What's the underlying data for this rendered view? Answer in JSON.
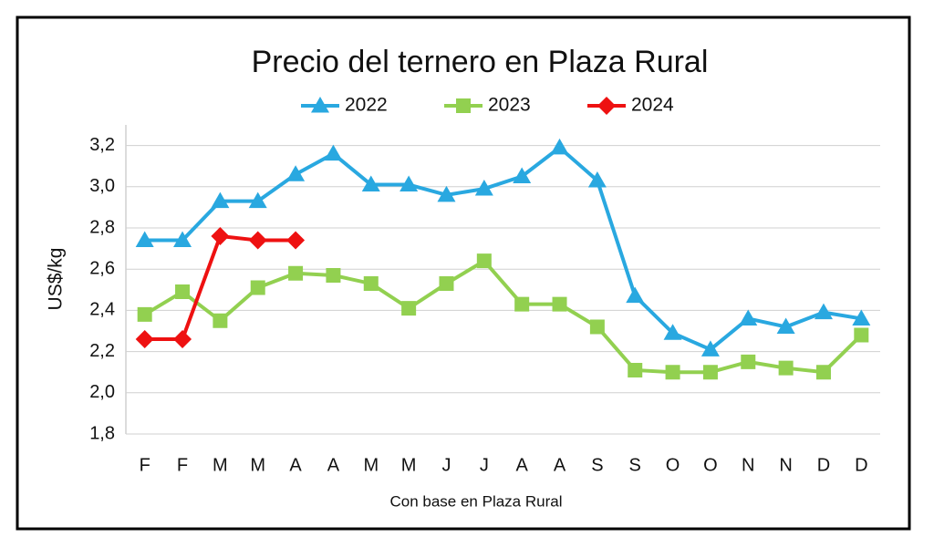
{
  "chart_data": {
    "type": "line",
    "title": "Precio del ternero en Plaza Rural",
    "y_label": "US$/kg",
    "x_label": "Con base en Plaza Rural",
    "categories": [
      "F",
      "F",
      "M",
      "M",
      "A",
      "A",
      "M",
      "M",
      "J",
      "J",
      "A",
      "A",
      "S",
      "S",
      "O",
      "O",
      "N",
      "N",
      "D",
      "D"
    ],
    "series": [
      {
        "name": "2022",
        "color": "#29a8e0",
        "marker": "triangle",
        "values": [
          2.74,
          2.74,
          2.93,
          2.93,
          3.06,
          3.16,
          3.01,
          3.01,
          2.96,
          2.99,
          3.05,
          3.19,
          3.03,
          2.47,
          2.29,
          2.21,
          2.36,
          2.32,
          2.39,
          2.36
        ]
      },
      {
        "name": "2023",
        "color": "#92d050",
        "marker": "square",
        "values": [
          2.38,
          2.49,
          2.35,
          2.51,
          2.58,
          2.57,
          2.53,
          2.41,
          2.53,
          2.64,
          2.43,
          2.43,
          2.32,
          2.11,
          2.1,
          2.1,
          2.15,
          2.12,
          2.1,
          2.28
        ]
      },
      {
        "name": "2024",
        "color": "#ee1111",
        "marker": "diamond",
        "values": [
          2.26,
          2.26,
          2.76,
          2.74,
          2.74,
          null,
          null,
          null,
          null,
          null,
          null,
          null,
          null,
          null,
          null,
          null,
          null,
          null,
          null,
          null
        ]
      }
    ],
    "ylim": [
      1.8,
      3.3
    ],
    "yticks": [
      {
        "value": 1.8,
        "label": "1,8"
      },
      {
        "value": 2.0,
        "label": "2,0"
      },
      {
        "value": 2.2,
        "label": "2,2"
      },
      {
        "value": 2.4,
        "label": "2,4"
      },
      {
        "value": 2.6,
        "label": "2,6"
      },
      {
        "value": 2.8,
        "label": "2,8"
      },
      {
        "value": 3.0,
        "label": "3,0"
      },
      {
        "value": 3.2,
        "label": "3,2"
      }
    ],
    "grid": true,
    "legend": "top"
  }
}
